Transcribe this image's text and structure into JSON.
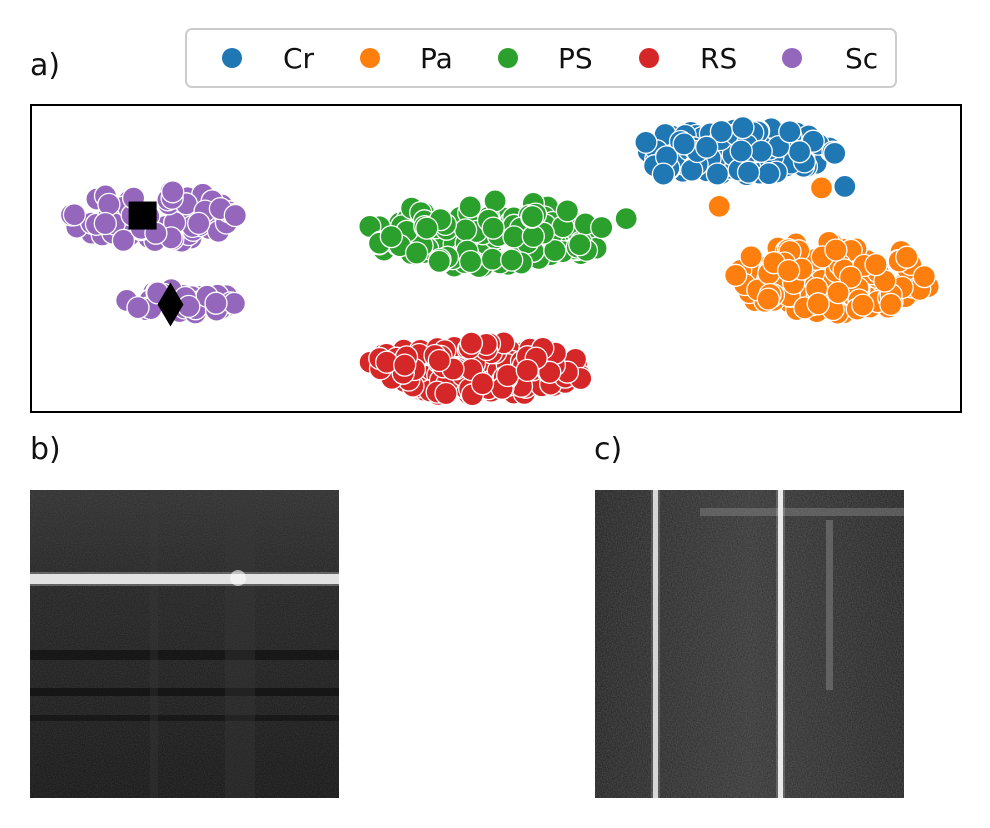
{
  "panels": {
    "a": "a)",
    "b": "b)",
    "c": "c)"
  },
  "colors": {
    "Cr": "#1f77b4",
    "Pa": "#ff7f0e",
    "PS": "#2ca02c",
    "RS": "#d62728",
    "Sc": "#9467bd"
  },
  "chart_data": {
    "type": "scatter",
    "title": "",
    "xlabel": "",
    "ylabel": "",
    "axes_ticks": "none",
    "legend_position": "top",
    "xlim": [
      0,
      100
    ],
    "ylim": [
      0,
      100
    ],
    "series": [
      {
        "name": "Cr",
        "color": "#1f77b4",
        "clusters": [
          {
            "center": [
              75.5,
              85
            ],
            "spread": [
              11,
              8
            ],
            "count": 130
          }
        ],
        "points": [
          [
            87.5,
            73.5
          ],
          [
            68,
            77.5
          ]
        ]
      },
      {
        "name": "Pa",
        "color": "#ff7f0e",
        "clusters": [
          {
            "center": [
              86,
              44
            ],
            "spread": [
              11,
              12
            ],
            "count": 150
          }
        ],
        "points": [
          [
            85,
            73
          ],
          [
            74,
            67
          ]
        ]
      },
      {
        "name": "PS",
        "color": "#2ca02c",
        "clusters": [
          {
            "center": [
              49,
              58
            ],
            "spread": [
              13,
              11
            ],
            "count": 140
          }
        ],
        "points": [
          [
            64,
            63
          ]
        ]
      },
      {
        "name": "RS",
        "color": "#d62728",
        "clusters": [
          {
            "center": [
              48,
              14
            ],
            "spread": [
              12,
              9
            ],
            "count": 170
          }
        ],
        "points": []
      },
      {
        "name": "Sc",
        "color": "#9467bd",
        "clusters": [
          {
            "center": [
              13,
              64
            ],
            "spread": [
              9,
              9
            ],
            "count": 70
          },
          {
            "center": [
              16,
              36
            ],
            "spread": [
              6,
              4
            ],
            "count": 40
          }
        ],
        "points": []
      }
    ],
    "markers": [
      {
        "shape": "square",
        "color": "#000000",
        "at": [
          12,
          64
        ]
      },
      {
        "shape": "diamond",
        "color": "#000000",
        "at": [
          15,
          35
        ]
      }
    ]
  },
  "images": {
    "b": {
      "description": "grayscale image with horizontal bright line",
      "orientation": "horizontal"
    },
    "c": {
      "description": "grayscale image with vertical bright lines",
      "orientation": "vertical"
    }
  }
}
